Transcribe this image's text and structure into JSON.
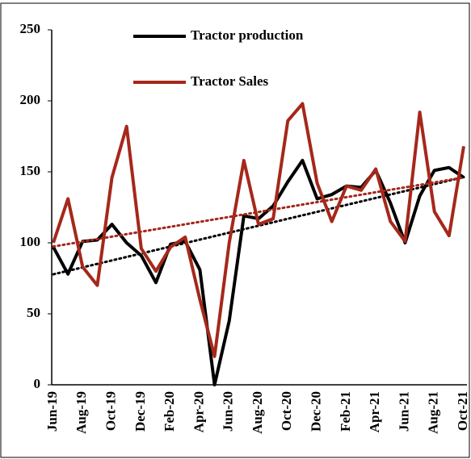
{
  "chart_data": {
    "type": "line",
    "categories": [
      "Jun-19",
      null,
      "Aug-19",
      null,
      "Oct-19",
      null,
      "Dec-19",
      null,
      "Feb-20",
      null,
      "Apr-20",
      null,
      "Jun-20",
      null,
      "Aug-20",
      null,
      "Oct-20",
      null,
      "Dec-20",
      null,
      "Feb-21",
      null,
      "Apr-21",
      null,
      "Jun-21",
      null,
      "Aug-21",
      null,
      "Oct-21"
    ],
    "series": [
      {
        "name": "Tractor production",
        "color": "#000000",
        "values": [
          97,
          78,
          101,
          102,
          113,
          100,
          91,
          72,
          99,
          101,
          81,
          0,
          45,
          119,
          117,
          126,
          143,
          158,
          131,
          134,
          140,
          139,
          151,
          128,
          100,
          133,
          151,
          153,
          146
        ]
      },
      {
        "name": "Tractor Sales",
        "color": "#a5281b",
        "values": [
          100,
          131,
          83,
          70,
          146,
          182,
          96,
          80,
          97,
          104,
          60,
          20,
          100,
          158,
          113,
          117,
          186,
          198,
          142,
          115,
          140,
          137,
          152,
          115,
          101,
          192,
          122,
          105,
          168
        ]
      }
    ],
    "trendline": true,
    "ylim": [
      0,
      250
    ],
    "yticks": [
      0,
      50,
      100,
      150,
      200,
      250
    ],
    "grid": false
  }
}
